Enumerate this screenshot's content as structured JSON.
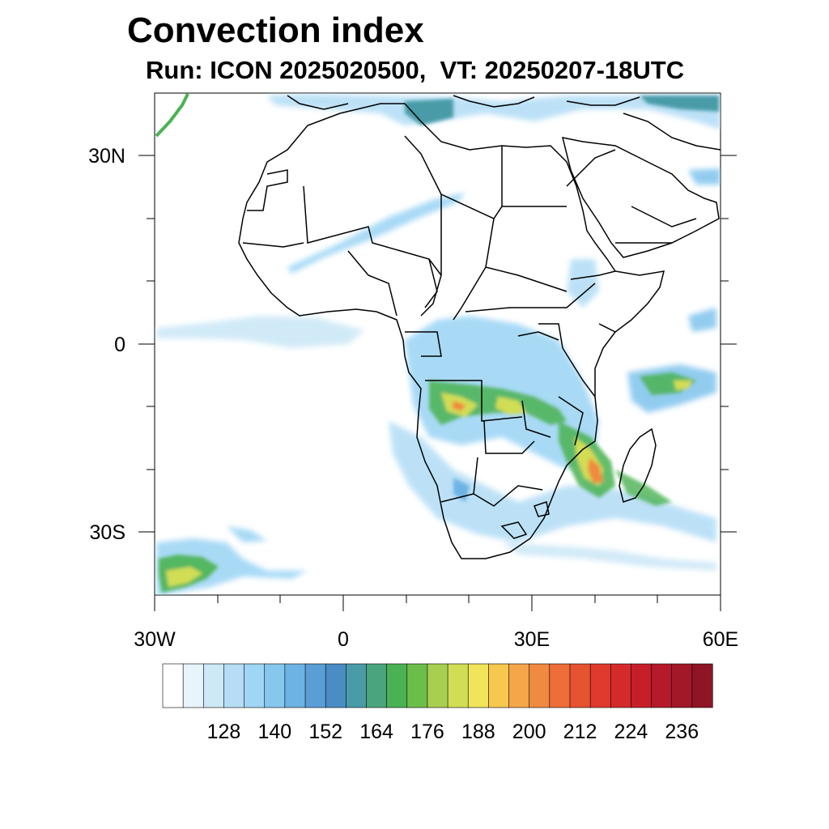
{
  "title": "Convection index",
  "subtitle": "Run: ICON 2025020500,  VT: 20250207-18UTC",
  "map": {
    "lon_range": [
      -30,
      60
    ],
    "lat_range": [
      -40,
      40
    ],
    "lon_ticks": [
      {
        "value": -30,
        "label": "30W"
      },
      {
        "value": 0,
        "label": "0"
      },
      {
        "value": 30,
        "label": "30E"
      },
      {
        "value": 60,
        "label": "60E"
      }
    ],
    "lat_ticks": [
      {
        "value": 30,
        "label": "30N"
      },
      {
        "value": 0,
        "label": "0"
      },
      {
        "value": -30,
        "label": "30S"
      }
    ],
    "minor_lon_ticks": [
      -20,
      -10,
      10,
      20,
      40,
      50
    ],
    "minor_lat_ticks": [
      20,
      10,
      -10,
      -20
    ]
  },
  "colorbar": {
    "colors": [
      "#ffffff",
      "#e8f4fb",
      "#cde8f7",
      "#b5def6",
      "#9fd6f5",
      "#86c7ee",
      "#6db3e4",
      "#5a9ed6",
      "#4a8cc4",
      "#4a9ba8",
      "#4aa57c",
      "#4ab252",
      "#6cbe4a",
      "#a8cf50",
      "#d1dd55",
      "#f0e45a",
      "#f7c850",
      "#f5a64a",
      "#f08a40",
      "#ee6d38",
      "#e65331",
      "#df3a2d",
      "#d52a2b",
      "#c71f2a",
      "#b5192a",
      "#a31829",
      "#8f1526"
    ],
    "labels": [
      "128",
      "140",
      "152",
      "164",
      "176",
      "188",
      "200",
      "212",
      "224",
      "236"
    ]
  }
}
